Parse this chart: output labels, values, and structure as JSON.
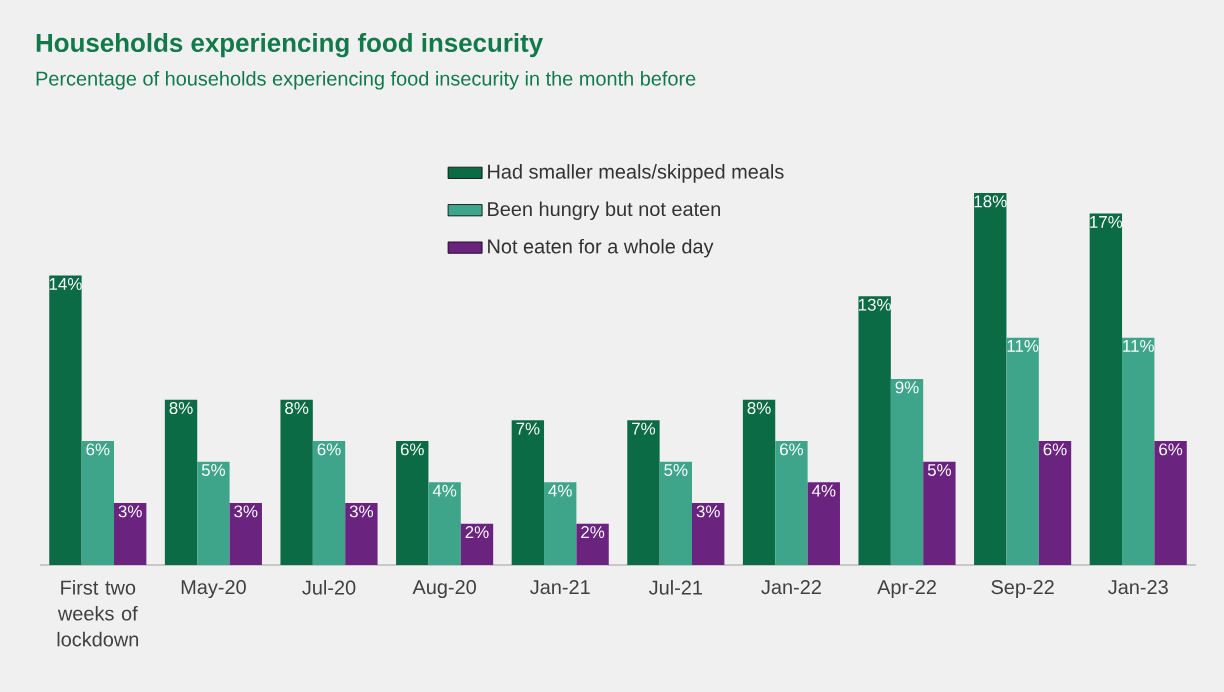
{
  "chart_data": {
    "type": "bar",
    "title": "Households experiencing food insecurity",
    "subtitle": "Percentage of households experiencing food insecurity in the month before",
    "categories": [
      "First two weeks of lockdown",
      "May-20",
      "Jul-20",
      "Aug-20",
      "Jan-21",
      "Jul-21",
      "Jan-22",
      "Apr-22",
      "Sep-22",
      "Jan-23"
    ],
    "series": [
      {
        "name": "Had smaller meals/skipped meals",
        "color": "#0b6b45",
        "values": [
          14,
          8,
          8,
          6,
          7,
          7,
          8,
          13,
          18,
          17
        ],
        "value_labels": [
          "14%",
          "8%",
          "8%",
          "6%",
          "7%",
          "7%",
          "8%",
          "13%",
          "18%",
          "17%"
        ]
      },
      {
        "name": "Been hungry but not eaten",
        "color": "#3fa58a",
        "values": [
          6,
          5,
          6,
          4,
          4,
          5,
          6,
          9,
          11,
          11
        ],
        "value_labels": [
          "6%",
          "5%",
          "6%",
          "4%",
          "4%",
          "5%",
          "6%",
          "9%",
          "11%",
          "11%"
        ]
      },
      {
        "name": "Not eaten for a whole day",
        "color": "#6b2380",
        "values": [
          3,
          3,
          3,
          2,
          2,
          3,
          4,
          5,
          6,
          6
        ],
        "value_labels": [
          "3%",
          "3%",
          "3%",
          "2%",
          "2%",
          "3%",
          "4%",
          "5%",
          "6%",
          "6%"
        ]
      }
    ],
    "legend": "top"
  }
}
